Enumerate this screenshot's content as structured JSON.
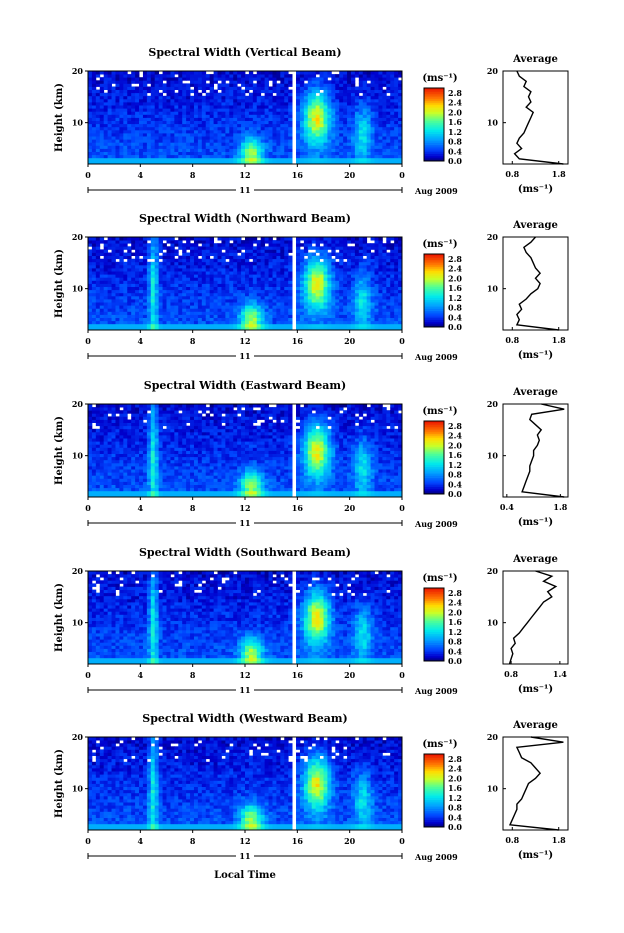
{
  "figure": {
    "xlabel": "Local Time",
    "date_label": "Aug 2009",
    "colorbar_unit": "(ms⁻¹)",
    "avg_title": "Average",
    "avg_xlabel": "(ms⁻¹)",
    "ylabel": "Height (km)"
  },
  "chart_data": [
    {
      "type": "heatmap",
      "title": "Spectral Width (Vertical Beam)",
      "xlabel": "Local Time",
      "ylabel": "Height (km)",
      "x_ticks": [
        "0",
        "4",
        "8",
        "12",
        "16",
        "20",
        "0"
      ],
      "x_range": [
        0,
        24
      ],
      "day_label": "11",
      "date_label": "Aug 2009",
      "y_ticks": [
        "20",
        "10"
      ],
      "y_range": [
        2,
        20
      ],
      "colorbar": {
        "label": "(ms⁻¹)",
        "ticks": [
          "2.8",
          "2.4",
          "2.0",
          "1.6",
          "1.2",
          "0.8",
          "0.4",
          "0.0"
        ],
        "range": [
          0,
          3.0
        ]
      },
      "data_gap_hours": [
        15.5,
        16.0
      ],
      "average_profile": {
        "title": "Average",
        "xlabel": "(ms⁻¹)",
        "x_ticks": [
          "0.8",
          "1.8"
        ],
        "x_range": [
          0.6,
          2.0
        ],
        "y_ticks": [
          "20",
          "10"
        ],
        "height_km": [
          2,
          3,
          4,
          5,
          6,
          7,
          8,
          9,
          10,
          11,
          12,
          13,
          14,
          15,
          16,
          17,
          18,
          19,
          20
        ],
        "width_ms": [
          1.9,
          0.95,
          0.85,
          1.0,
          0.9,
          0.95,
          1.05,
          1.1,
          1.15,
          1.2,
          1.25,
          1.1,
          1.2,
          1.15,
          1.2,
          1.05,
          1.1,
          0.95,
          0.9
        ]
      }
    },
    {
      "type": "heatmap",
      "title": "Spectral Width (Northward Beam)",
      "xlabel": "Local Time",
      "ylabel": "Height (km)",
      "x_ticks": [
        "0",
        "4",
        "8",
        "12",
        "16",
        "20",
        "0"
      ],
      "x_range": [
        0,
        24
      ],
      "day_label": "11",
      "date_label": "Aug 2009",
      "y_ticks": [
        "20",
        "10"
      ],
      "y_range": [
        2,
        20
      ],
      "colorbar": {
        "label": "(ms⁻¹)",
        "ticks": [
          "2.8",
          "2.4",
          "2.0",
          "1.6",
          "1.2",
          "0.8",
          "0.4",
          "0.0"
        ],
        "range": [
          0,
          3.0
        ]
      },
      "data_gap_hours": [
        15.5,
        16.0
      ],
      "average_profile": {
        "title": "Average",
        "xlabel": "(ms⁻¹)",
        "x_ticks": [
          "0.8",
          "1.8"
        ],
        "x_range": [
          0.6,
          2.0
        ],
        "y_ticks": [
          "20",
          "10"
        ],
        "height_km": [
          2,
          3,
          4,
          5,
          6,
          7,
          8,
          9,
          10,
          11,
          12,
          13,
          14,
          15,
          16,
          17,
          18,
          19,
          20
        ],
        "width_ms": [
          1.8,
          0.9,
          0.95,
          0.9,
          1.0,
          0.95,
          1.1,
          1.2,
          1.35,
          1.4,
          1.3,
          1.4,
          1.3,
          1.25,
          1.2,
          1.1,
          1.05,
          1.2,
          1.3
        ]
      }
    },
    {
      "type": "heatmap",
      "title": "Spectral Width (Eastward Beam)",
      "xlabel": "Local Time",
      "ylabel": "Height (km)",
      "x_ticks": [
        "0",
        "4",
        "8",
        "12",
        "16",
        "20",
        "0"
      ],
      "x_range": [
        0,
        24
      ],
      "day_label": "11",
      "date_label": "Aug 2009",
      "y_ticks": [
        "20",
        "10"
      ],
      "y_range": [
        2,
        20
      ],
      "colorbar": {
        "label": "(ms⁻¹)",
        "ticks": [
          "2.8",
          "2.4",
          "2.0",
          "1.6",
          "1.2",
          "0.8",
          "0.4",
          "0.0"
        ],
        "range": [
          0,
          3.0
        ]
      },
      "data_gap_hours": [
        15.5,
        16.0
      ],
      "average_profile": {
        "title": "Average",
        "xlabel": "(ms⁻¹)",
        "x_ticks": [
          "0.4",
          "1.8"
        ],
        "x_range": [
          0.3,
          2.0
        ],
        "y_ticks": [
          "20",
          "10"
        ],
        "height_km": [
          2,
          3,
          4,
          5,
          6,
          7,
          8,
          9,
          10,
          11,
          12,
          13,
          14,
          15,
          16,
          17,
          18,
          19,
          20
        ],
        "width_ms": [
          1.9,
          0.8,
          0.85,
          0.9,
          0.95,
          1.0,
          1.0,
          1.05,
          1.1,
          1.1,
          1.2,
          1.25,
          1.2,
          1.3,
          1.15,
          1.0,
          1.05,
          1.9,
          1.3
        ]
      }
    },
    {
      "type": "heatmap",
      "title": "Spectral Width (Southward Beam)",
      "xlabel": "Local Time",
      "ylabel": "Height (km)",
      "x_ticks": [
        "0",
        "4",
        "8",
        "12",
        "16",
        "20",
        "0"
      ],
      "x_range": [
        0,
        24
      ],
      "day_label": "11",
      "date_label": "Aug 2009",
      "y_ticks": [
        "20",
        "10"
      ],
      "y_range": [
        2,
        20
      ],
      "colorbar": {
        "label": "(ms⁻¹)",
        "ticks": [
          "2.8",
          "2.4",
          "2.0",
          "1.6",
          "1.2",
          "0.8",
          "0.4",
          "0.0"
        ],
        "range": [
          0,
          3.0
        ]
      },
      "data_gap_hours": [
        15.5,
        16.0
      ],
      "average_profile": {
        "title": "Average",
        "xlabel": "(ms⁻¹)",
        "x_ticks": [
          "0.8",
          "1.4"
        ],
        "x_range": [
          0.7,
          1.5
        ],
        "y_ticks": [
          "20",
          "10"
        ],
        "height_km": [
          2,
          3,
          4,
          5,
          6,
          7,
          8,
          9,
          10,
          11,
          12,
          13,
          14,
          15,
          16,
          17,
          18,
          19,
          20
        ],
        "width_ms": [
          0.78,
          0.8,
          0.82,
          0.8,
          0.85,
          0.83,
          0.9,
          0.95,
          1.0,
          1.05,
          1.1,
          1.15,
          1.2,
          1.3,
          1.25,
          1.35,
          1.2,
          1.3,
          1.1
        ]
      }
    },
    {
      "type": "heatmap",
      "title": "Spectral Width (Westward Beam)",
      "xlabel": "Local Time",
      "ylabel": "Height (km)",
      "x_ticks": [
        "0",
        "4",
        "8",
        "12",
        "16",
        "20",
        "0"
      ],
      "x_range": [
        0,
        24
      ],
      "day_label": "11",
      "date_label": "Aug 2009",
      "y_ticks": [
        "20",
        "10"
      ],
      "y_range": [
        2,
        20
      ],
      "colorbar": {
        "label": "(ms⁻¹)",
        "ticks": [
          "2.8",
          "2.4",
          "2.0",
          "1.6",
          "1.2",
          "0.8",
          "0.4",
          "0.0"
        ],
        "range": [
          0,
          3.0
        ]
      },
      "data_gap_hours": [
        15.5,
        16.0
      ],
      "average_profile": {
        "title": "Average",
        "xlabel": "(ms⁻¹)",
        "x_ticks": [
          "0.8",
          "1.8"
        ],
        "x_range": [
          0.6,
          2.0
        ],
        "y_ticks": [
          "20",
          "10"
        ],
        "height_km": [
          2,
          3,
          4,
          5,
          6,
          7,
          8,
          9,
          10,
          11,
          12,
          13,
          14,
          15,
          16,
          17,
          18,
          19,
          20
        ],
        "width_ms": [
          1.8,
          0.75,
          0.8,
          0.85,
          0.9,
          0.9,
          1.0,
          1.05,
          1.1,
          1.15,
          1.3,
          1.4,
          1.3,
          1.2,
          1.0,
          0.95,
          0.9,
          1.9,
          1.2
        ]
      }
    }
  ]
}
